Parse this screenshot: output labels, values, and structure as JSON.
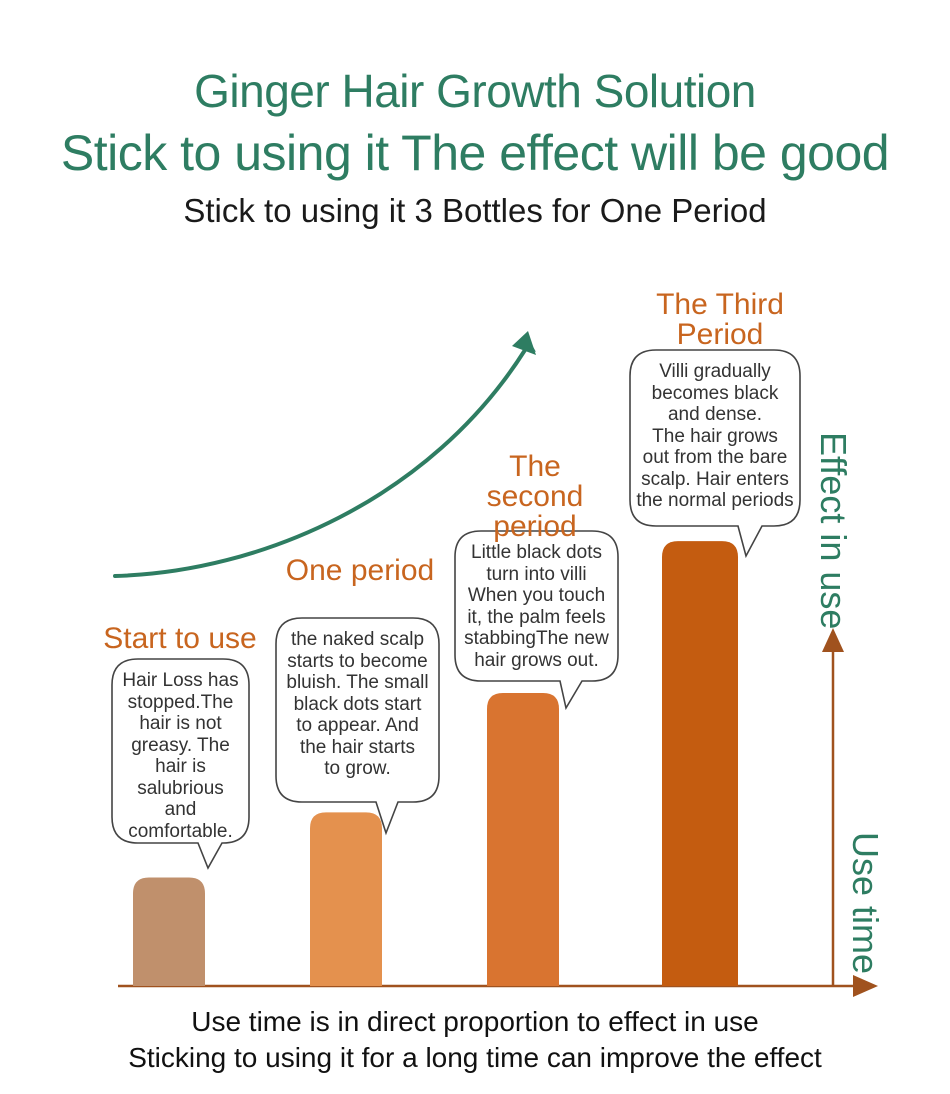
{
  "header": {
    "title": "Ginger Hair Growth Solution",
    "slogan": "Stick to using it The effect will be good",
    "subtitle": "Stick to using it  3 Bottles for One Period"
  },
  "footer": {
    "line1": "Use time is in direct proportion to effect in use",
    "line2": "Sticking to using it for a long time can improve the effect"
  },
  "colors": {
    "green": "#2e7d62",
    "axis": "#a0521e",
    "bar1": "#c0906c",
    "bar2": "#e4914e",
    "bar3": "#d97430",
    "bar4": "#c45c10"
  },
  "chart_data": {
    "type": "bar",
    "title": "",
    "xlabel": "Use time",
    "ylabel": "Effect in use",
    "categories": [
      "Start to use",
      "One period",
      "The second period",
      "The Third Period"
    ],
    "values": [
      1,
      1.6,
      2.7,
      4.1
    ],
    "ylim": [
      0,
      4.1
    ],
    "grid": false,
    "annotations": [
      [
        "Hair Loss has",
        "stopped.The",
        "hair is not",
        "greasy. The",
        "hair is",
        "salubrious",
        "and",
        "comfortable."
      ],
      [
        "the naked scalp",
        "starts to become",
        "bluish. The small",
        "black dots start",
        "to appear. And",
        "the hair starts",
        "to grow."
      ],
      [
        "Little black dots",
        "turn into villi",
        "When you touch",
        "it, the palm feels",
        "stabbingThe new",
        "hair grows out."
      ],
      [
        "Villi gradually",
        "becomes black",
        "and dense.",
        "The hair grows",
        "out from the bare",
        "scalp. Hair enters",
        "the normal periods"
      ]
    ]
  }
}
